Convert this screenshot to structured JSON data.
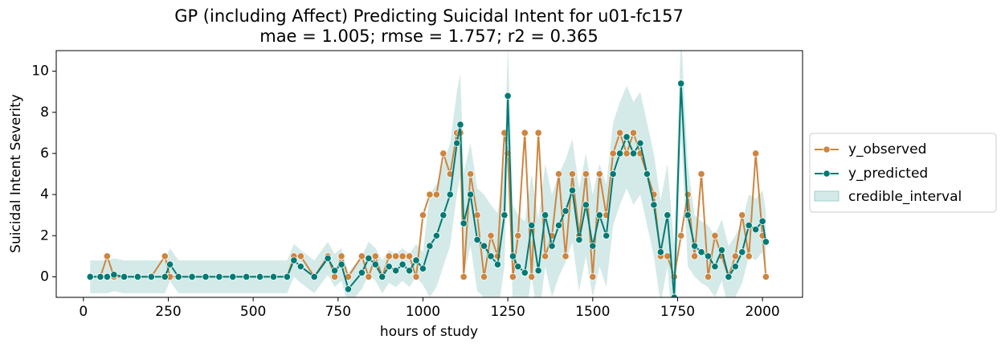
{
  "chart_data": {
    "type": "line",
    "title": "GP (including Affect) Predicting Suicidal Intent for u01-fc157",
    "subtitle": "mae = 1.005; rmse = 1.757; r2 = 0.365",
    "x_label": "hours of study",
    "y_label": "Suicidal Intent Severity",
    "xlim": [
      -80,
      2118
    ],
    "ylim": [
      -1,
      11
    ],
    "xticks": [
      0,
      250,
      500,
      750,
      1000,
      1250,
      1500,
      1750,
      2000
    ],
    "yticks": [
      0,
      2,
      4,
      6,
      8,
      10
    ],
    "grid": false,
    "legend": "outside right",
    "x": [
      20,
      50,
      70,
      90,
      120,
      160,
      200,
      240,
      255,
      280,
      320,
      360,
      400,
      440,
      480,
      520,
      560,
      600,
      620,
      640,
      680,
      720,
      740,
      760,
      780,
      820,
      840,
      860,
      880,
      900,
      920,
      940,
      960,
      980,
      1000,
      1020,
      1040,
      1060,
      1080,
      1100,
      1110,
      1120,
      1140,
      1160,
      1180,
      1200,
      1220,
      1240,
      1250,
      1265,
      1280,
      1300,
      1320,
      1340,
      1360,
      1380,
      1400,
      1420,
      1440,
      1460,
      1480,
      1500,
      1520,
      1540,
      1560,
      1580,
      1600,
      1620,
      1640,
      1660,
      1680,
      1700,
      1720,
      1740,
      1760,
      1780,
      1800,
      1820,
      1840,
      1860,
      1880,
      1900,
      1920,
      1940,
      1960,
      1980,
      2000,
      2010
    ],
    "series": [
      {
        "name": "y_observed",
        "color": "#cd853f",
        "values": [
          0,
          0,
          1,
          0,
          0,
          0,
          0,
          1,
          0,
          0,
          0,
          0,
          0,
          0,
          0,
          0,
          0,
          0,
          1,
          1,
          0,
          1,
          0,
          1,
          0,
          1,
          0,
          1,
          0,
          1,
          1,
          1,
          1,
          0,
          3,
          4,
          4,
          6,
          5,
          7,
          7,
          0,
          5,
          3,
          0,
          2,
          1,
          7,
          6,
          0,
          2,
          7,
          0,
          7,
          1,
          2,
          5,
          1,
          5,
          2,
          5,
          0,
          5,
          3,
          6,
          7,
          6,
          7,
          6,
          5,
          4,
          1,
          1,
          0,
          2,
          4,
          1,
          5,
          0,
          2,
          1,
          0,
          1,
          3,
          1,
          6,
          2,
          0
        ]
      },
      {
        "name": "y_predicted",
        "color": "#007a74",
        "values": [
          0,
          0,
          0,
          0.1,
          0,
          0,
          0,
          0,
          0.6,
          0,
          0,
          0,
          0,
          0,
          0,
          0,
          0,
          0,
          0.8,
          0.5,
          0,
          0.9,
          0.3,
          0.6,
          -0.6,
          0.2,
          0.9,
          0.6,
          0,
          0.5,
          0.3,
          0.6,
          0.3,
          0.8,
          0.4,
          1.5,
          2,
          3,
          4,
          6.5,
          7.4,
          2.6,
          4,
          1.8,
          1.5,
          1,
          0.6,
          3,
          8.8,
          1,
          0.5,
          0.2,
          2.5,
          0.3,
          3,
          1.5,
          2.5,
          3.2,
          4.2,
          1.8,
          3.5,
          1.5,
          3,
          2,
          5,
          6,
          6.8,
          6,
          6.5,
          5,
          3.5,
          1.2,
          3,
          -1,
          9.4,
          3,
          1.5,
          1.2,
          1,
          0.5,
          1.3,
          0,
          0.5,
          1.2,
          2.5,
          2.3,
          2.7,
          1.7
        ]
      }
    ],
    "band": {
      "name": "credible_interval",
      "color": "#9fd0cc",
      "lower": [
        -0.8,
        -0.8,
        -0.8,
        -0.7,
        -0.8,
        -0.8,
        -0.8,
        -0.8,
        -0.2,
        -0.8,
        -0.8,
        -0.8,
        -0.8,
        -0.8,
        -0.8,
        -0.8,
        -0.8,
        -0.8,
        0,
        -0.3,
        -0.8,
        0.1,
        -0.5,
        -0.2,
        -1.4,
        -0.6,
        0.1,
        -0.2,
        -0.8,
        -0.3,
        -0.5,
        -0.2,
        -0.5,
        0,
        -0.4,
        -1,
        -0.5,
        0.5,
        1.5,
        4,
        4.9,
        0.1,
        1.5,
        -0.7,
        -1,
        -1.5,
        -1.9,
        0.5,
        6.3,
        -1.5,
        -2,
        -2.3,
        0,
        -2.2,
        0.5,
        -1,
        0,
        0.7,
        1.7,
        -0.7,
        1,
        -1,
        0.5,
        -0.5,
        2.5,
        3.5,
        4.3,
        3.5,
        4,
        2.5,
        1,
        -1.3,
        0.5,
        -3.5,
        6.9,
        0.5,
        0,
        -0.3,
        -0.5,
        -1,
        -0.2,
        -1.5,
        -1,
        -0.3,
        1,
        0.8,
        1.2,
        0.2
      ],
      "upper": [
        0.8,
        0.8,
        0.8,
        0.9,
        0.8,
        0.8,
        0.8,
        0.8,
        1.4,
        0.8,
        0.8,
        0.8,
        0.8,
        0.8,
        0.8,
        0.8,
        0.8,
        0.8,
        1.6,
        1.3,
        0.8,
        1.7,
        1.1,
        1.4,
        0.2,
        1,
        1.7,
        1.4,
        0.8,
        1.3,
        1.1,
        1.4,
        1.1,
        1.6,
        1.2,
        4,
        4.5,
        5.5,
        6.5,
        9,
        9.9,
        5.1,
        6.5,
        4.3,
        4,
        3.5,
        3.1,
        5.5,
        11.3,
        3.5,
        3,
        2.7,
        5,
        2.8,
        5.5,
        4,
        5,
        5.7,
        6.7,
        4.3,
        6,
        4,
        5.5,
        4.5,
        7.5,
        8.5,
        9.3,
        8.5,
        9,
        7.5,
        6,
        3.7,
        5.5,
        1.5,
        11.9,
        5.5,
        3,
        2.7,
        2.5,
        2,
        2.8,
        1.5,
        2,
        2.7,
        4,
        3.8,
        4.2,
        3.2
      ]
    }
  }
}
